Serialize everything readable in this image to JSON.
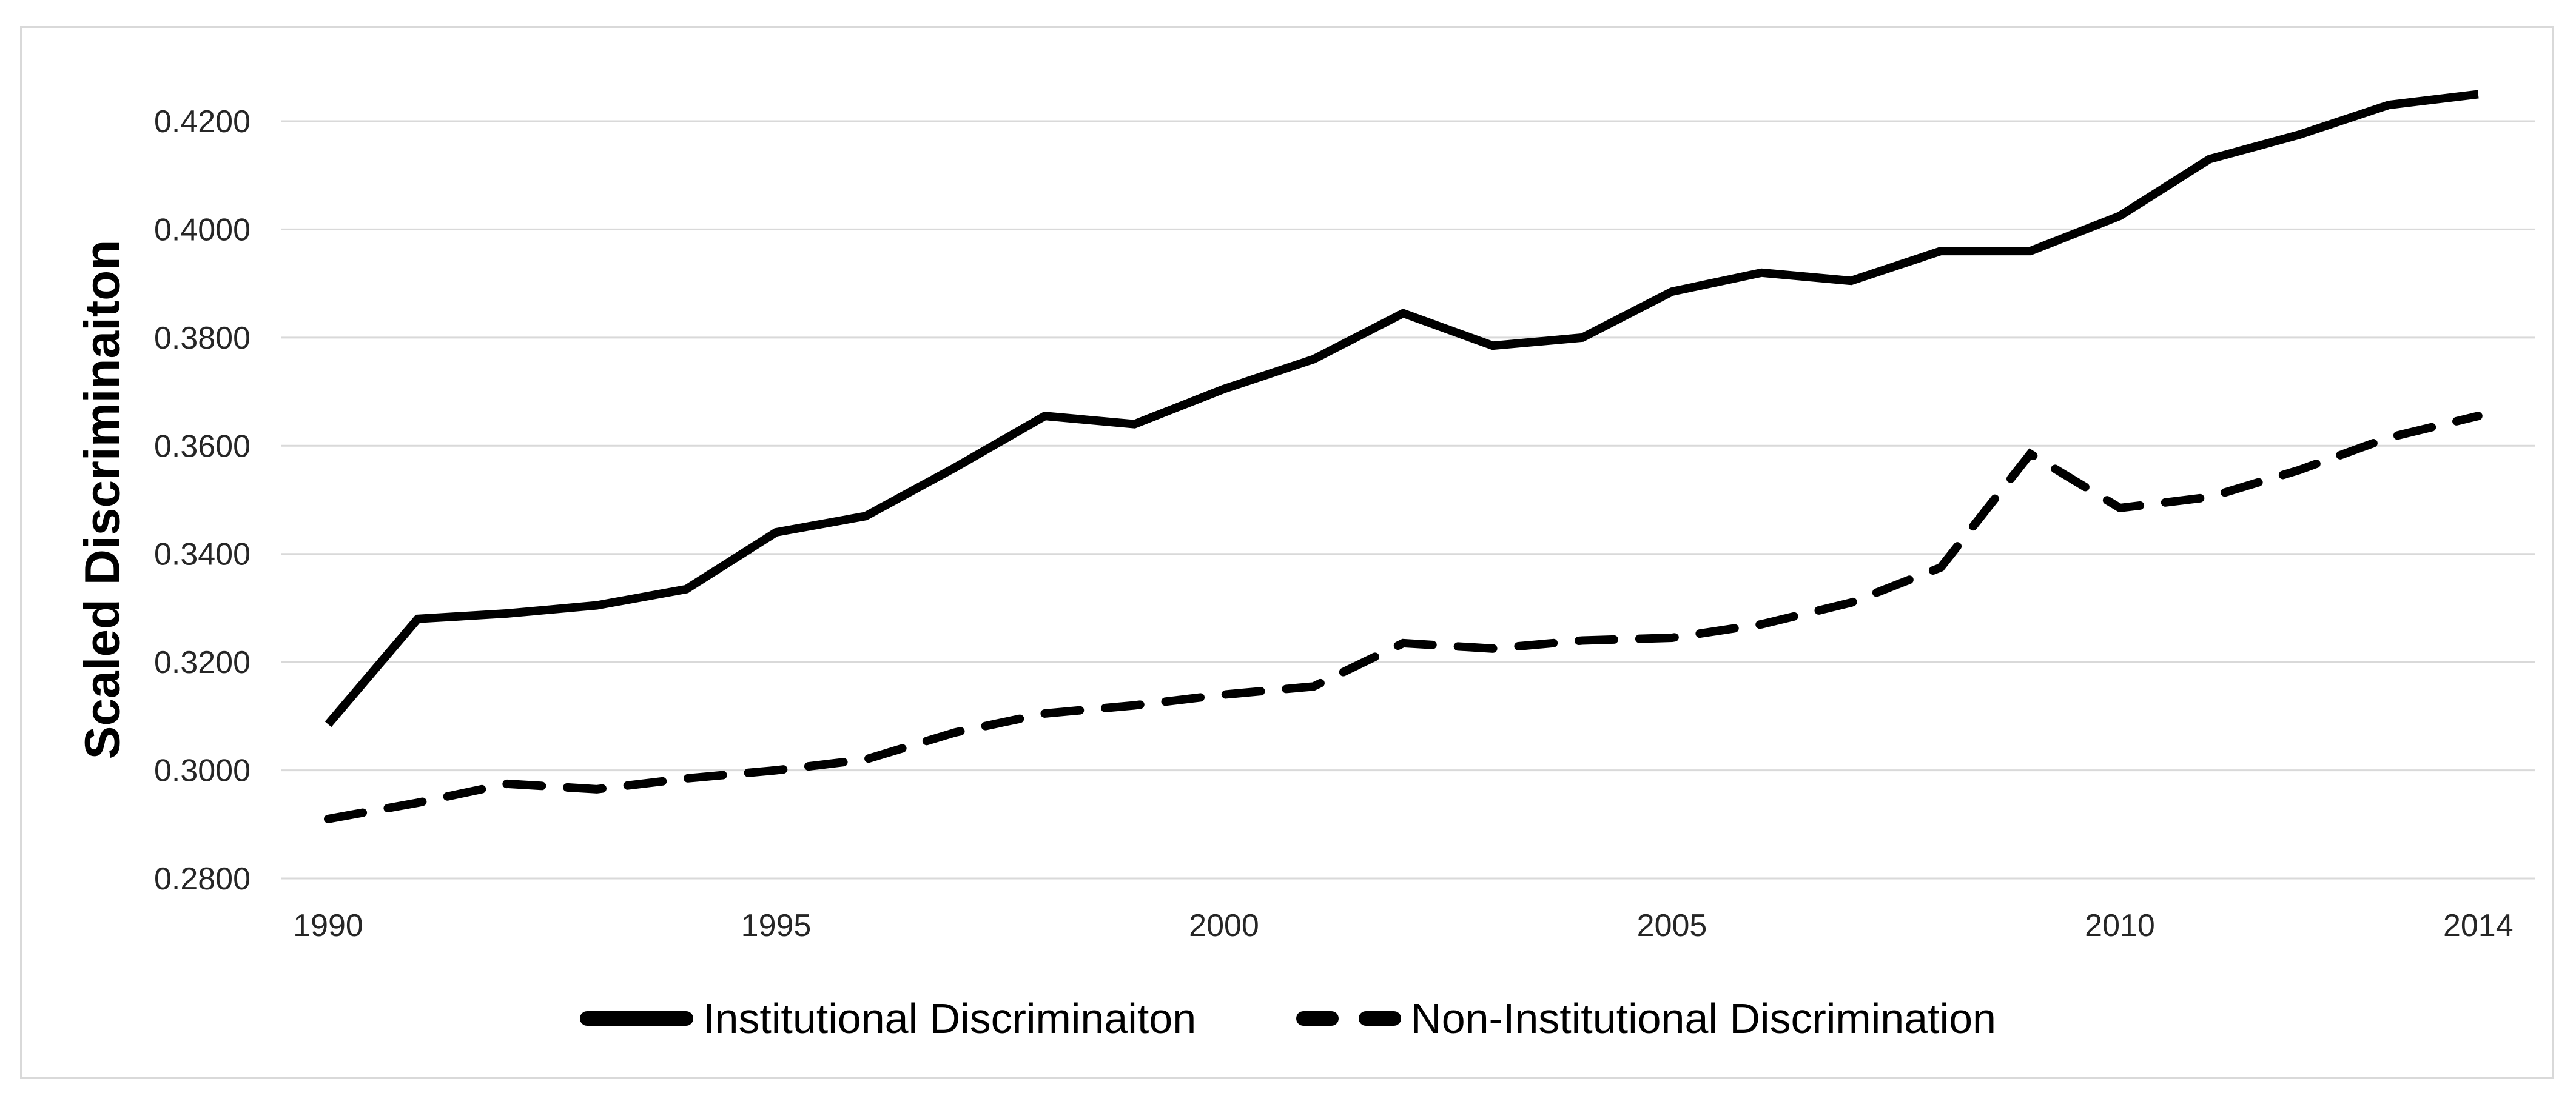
{
  "chart_data": {
    "type": "line",
    "title": "",
    "xlabel": "",
    "ylabel": "Scaled Discriminaiton",
    "x": [
      1990,
      1991,
      1992,
      1993,
      1994,
      1995,
      1996,
      1997,
      1998,
      1999,
      2000,
      2001,
      2002,
      2003,
      2004,
      2005,
      2006,
      2007,
      2008,
      2009,
      2010,
      2011,
      2012,
      2013,
      2014
    ],
    "x_tick_labels": [
      "1990",
      "1995",
      "2000",
      "2005",
      "2010",
      "2014"
    ],
    "x_tick_years": [
      1990,
      1995,
      2000,
      2005,
      2010,
      2014
    ],
    "y_tick_labels": [
      "0.2800",
      "0.3000",
      "0.3200",
      "0.3400",
      "0.3600",
      "0.3800",
      "0.4000",
      "0.4200"
    ],
    "y_ticks": [
      0.28,
      0.3,
      0.32,
      0.34,
      0.36,
      0.38,
      0.4,
      0.42
    ],
    "ylim": [
      0.28,
      0.42
    ],
    "xlim": [
      1990,
      2014
    ],
    "grid": "horizontal",
    "legend_position": "bottom",
    "series": [
      {
        "name": "Institutional Discriminaiton",
        "style": "solid",
        "color": "#000000",
        "values": [
          0.3085,
          0.328,
          0.329,
          0.3305,
          0.3335,
          0.344,
          0.347,
          0.356,
          0.3655,
          0.364,
          0.3705,
          0.376,
          0.3845,
          0.3785,
          0.38,
          0.3885,
          0.392,
          0.3905,
          0.396,
          0.396,
          0.4025,
          0.413,
          0.4175,
          0.423,
          0.425
        ]
      },
      {
        "name": "Non-Institutional Discrimination",
        "style": "dashed",
        "color": "#000000",
        "values": [
          0.291,
          0.294,
          0.2975,
          0.2965,
          0.2985,
          0.3,
          0.302,
          0.307,
          0.3105,
          0.312,
          0.314,
          0.3155,
          0.3235,
          0.3225,
          0.324,
          0.3245,
          0.327,
          0.331,
          0.3375,
          0.3585,
          0.3485,
          0.3505,
          0.3555,
          0.3615,
          0.3655
        ]
      }
    ]
  },
  "colors": {
    "background": "#ffffff",
    "frame_border": "#d9d9d9",
    "gridline": "#d9d9d9",
    "tick_text": "#262626",
    "axis_title_text": "#000000",
    "legend_text": "#000000",
    "line": "#000000"
  }
}
